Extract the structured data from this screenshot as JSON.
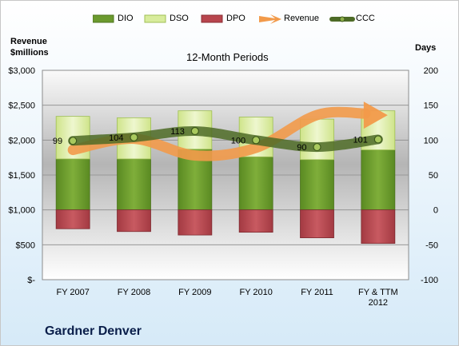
{
  "chart_data": {
    "type": "bar",
    "title": "12-Month Periods",
    "company": "Gardner Denver",
    "left_axis_label": [
      "Revenue",
      "$millions"
    ],
    "right_axis_label": "Days",
    "categories": [
      [
        "FY 2007"
      ],
      [
        "FY 2008"
      ],
      [
        "FY 2009"
      ],
      [
        "FY 2010"
      ],
      [
        "FY 2011"
      ],
      [
        "FY & TTM",
        "2012"
      ]
    ],
    "left_ticks": [
      "$-",
      "$500",
      "$1,000",
      "$1,500",
      "$2,000",
      "$2,500",
      "$3,000"
    ],
    "right_ticks": [
      "-100",
      "-50",
      "0",
      "50",
      "100",
      "150",
      "200"
    ],
    "ylim_left": [
      0,
      3000
    ],
    "ylim_right": [
      -100,
      200
    ],
    "legend_position": "top",
    "series": [
      {
        "name": "DIO",
        "type": "stacked-bar",
        "axis": "right",
        "color": "#6b9a2e",
        "values": [
          73,
          73,
          87,
          76,
          72,
          86
        ]
      },
      {
        "name": "DSO",
        "type": "stacked-bar",
        "axis": "right",
        "color": "#d8ec9c",
        "values": [
          61,
          59,
          55,
          57,
          58,
          56
        ]
      },
      {
        "name": "DPO",
        "type": "stacked-bar-negative",
        "axis": "right",
        "color": "#b8454d",
        "values": [
          -27,
          -31,
          -36,
          -32,
          -40,
          -48
        ]
      },
      {
        "name": "Revenue",
        "type": "line-arrow",
        "axis": "left",
        "color": "#f29a4a",
        "values": [
          1860,
          2020,
          1780,
          1890,
          2360,
          2380
        ]
      },
      {
        "name": "CCC",
        "type": "line-markers",
        "axis": "right",
        "color": "#4d6b26",
        "values": [
          99,
          104,
          113,
          100,
          90,
          101
        ],
        "labels": [
          "99",
          "104",
          "113",
          "100",
          "90",
          "101"
        ]
      }
    ]
  }
}
